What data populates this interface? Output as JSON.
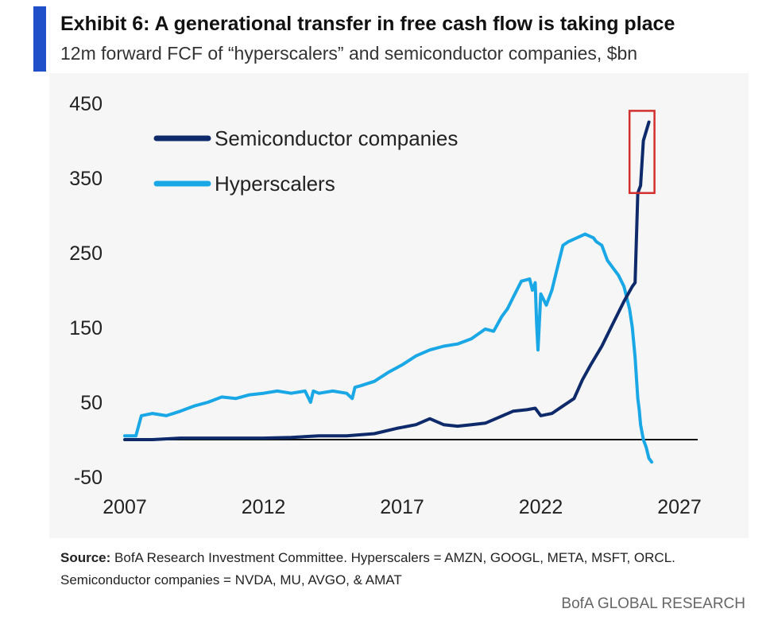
{
  "header": {
    "title": "Exhibit 6: A generational transfer in free cash flow is taking place",
    "subtitle": "12m forward FCF of “hyperscalers” and semiconductor companies, $bn"
  },
  "footer": {
    "source_label": "Source:",
    "source_text": "BofA Research Investment Committee. Hyperscalers = AMZN, GOOGL, META, MSFT, ORCL.",
    "source_text_2": "Semiconductor companies = NVDA, MU, AVGO, & AMAT",
    "brand": "BofA GLOBAL RESEARCH"
  },
  "colors": {
    "accent_bar": "#1f4fc9",
    "semiconductor": "#0f2a6b",
    "hyperscalers": "#1aa7e6",
    "highlight_box": "#d32f2f",
    "zero_line": "#111111"
  },
  "chart_data": {
    "type": "line",
    "title": "Exhibit 6: A generational transfer in free cash flow is taking place",
    "xlabel": "",
    "ylabel": "",
    "xlim": [
      2007,
      2027
    ],
    "ylim": [
      -50,
      450
    ],
    "x_ticks": [
      "2007",
      "2012",
      "2017",
      "2022",
      "2027"
    ],
    "y_ticks": [
      "450",
      "350",
      "250",
      "150",
      "50",
      "-50"
    ],
    "legend_position": "top-left",
    "grid": false,
    "series": [
      {
        "name": "Semiconductor companies",
        "color": "#0f2a6b",
        "x": [
          2007.0,
          2008.0,
          2009.0,
          2010.0,
          2011.0,
          2012.0,
          2013.0,
          2014.0,
          2015.0,
          2016.0,
          2016.8,
          2017.5,
          2018.0,
          2018.5,
          2019.0,
          2019.5,
          2020.0,
          2020.5,
          2021.0,
          2021.5,
          2021.8,
          2022.0,
          2022.4,
          2022.8,
          2023.2,
          2023.5,
          2023.8,
          2024.2,
          2024.6,
          2025.0,
          2025.3,
          2025.4,
          2025.5,
          2025.6,
          2025.7,
          2025.9
        ],
        "y": [
          0,
          0,
          2,
          2,
          2,
          2,
          3,
          5,
          5,
          8,
          15,
          20,
          28,
          20,
          18,
          20,
          22,
          30,
          38,
          40,
          42,
          32,
          35,
          45,
          55,
          80,
          100,
          125,
          155,
          185,
          205,
          210,
          330,
          340,
          400,
          425
        ]
      },
      {
        "name": "Hyperscalers",
        "color": "#1aa7e6",
        "x": [
          2007.0,
          2007.4,
          2007.6,
          2008.0,
          2008.5,
          2009.0,
          2009.5,
          2010.0,
          2010.5,
          2011.0,
          2011.5,
          2012.0,
          2012.5,
          2013.0,
          2013.5,
          2013.7,
          2013.8,
          2014.0,
          2014.5,
          2015.0,
          2015.2,
          2015.3,
          2015.5,
          2016.0,
          2016.5,
          2017.0,
          2017.5,
          2018.0,
          2018.5,
          2019.0,
          2019.5,
          2020.0,
          2020.3,
          2020.6,
          2020.8,
          2021.0,
          2021.3,
          2021.6,
          2021.7,
          2021.8,
          2021.85,
          2021.9,
          2022.0,
          2022.2,
          2022.4,
          2022.6,
          2022.8,
          2023.0,
          2023.3,
          2023.6,
          2023.9,
          2024.0,
          2024.2,
          2024.4,
          2024.6,
          2024.8,
          2025.0,
          2025.2,
          2025.3,
          2025.4,
          2025.5,
          2025.55,
          2025.6,
          2025.7,
          2025.8,
          2025.9,
          2026.0
        ],
        "y": [
          5,
          5,
          32,
          35,
          32,
          38,
          45,
          50,
          57,
          55,
          60,
          62,
          65,
          62,
          65,
          50,
          65,
          62,
          65,
          62,
          55,
          70,
          72,
          78,
          90,
          100,
          112,
          120,
          125,
          128,
          135,
          148,
          145,
          165,
          175,
          190,
          212,
          215,
          200,
          210,
          155,
          120,
          195,
          180,
          200,
          230,
          260,
          265,
          270,
          275,
          270,
          265,
          260,
          240,
          230,
          220,
          205,
          175,
          150,
          110,
          55,
          40,
          20,
          0,
          -10,
          -25,
          -30
        ]
      }
    ],
    "annotations": [
      {
        "type": "highlight_box",
        "x_range": [
          2025.2,
          2026.1
        ],
        "y_range": [
          330,
          440
        ]
      }
    ]
  }
}
